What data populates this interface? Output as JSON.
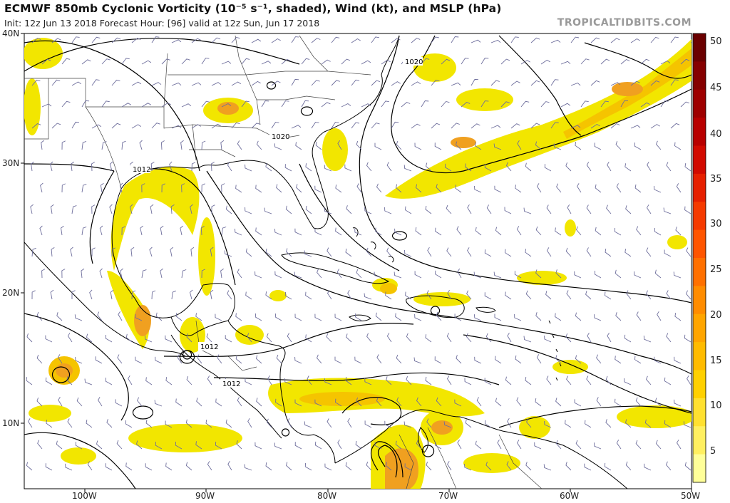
{
  "header": {
    "title": "ECMWF 850mb Cyclonic Vorticity (10⁻⁵ s⁻¹, shaded), Wind (kt), and MSLP (hPa)",
    "subtitle": "Init: 12z Jun 13 2018   Forecast Hour: [96]   valid at 12z Sun, Jun 17 2018",
    "brand": "TROPICALTIDBITS.COM"
  },
  "map": {
    "lat_labels": [
      "40N",
      "30N",
      "20N",
      "10N"
    ],
    "lon_labels": [
      "100W",
      "90W",
      "80W",
      "70W",
      "60W",
      "50W"
    ],
    "isobar_labels": [
      "1020",
      "1020",
      "1012",
      "1012",
      "1012"
    ],
    "shading_colors": {
      "light": "#f2e600",
      "mid": "#f5c400",
      "strong": "#f0a020",
      "max": "#e87a10"
    },
    "barb_color": "#6e6e9c",
    "contour_color": "#000000"
  },
  "colorbar": {
    "labels": [
      "50",
      "45",
      "40",
      "35",
      "30",
      "25",
      "20",
      "15",
      "10",
      "5"
    ],
    "colors_bottom_to_top": [
      "#ffff99",
      "#ffef60",
      "#ffe030",
      "#ffd000",
      "#ffbb00",
      "#ffa500",
      "#ff8c00",
      "#ff7000",
      "#ff5500",
      "#f53a00",
      "#e62000",
      "#d10a00",
      "#b80000",
      "#9e0000",
      "#850000",
      "#6a0000"
    ]
  }
}
